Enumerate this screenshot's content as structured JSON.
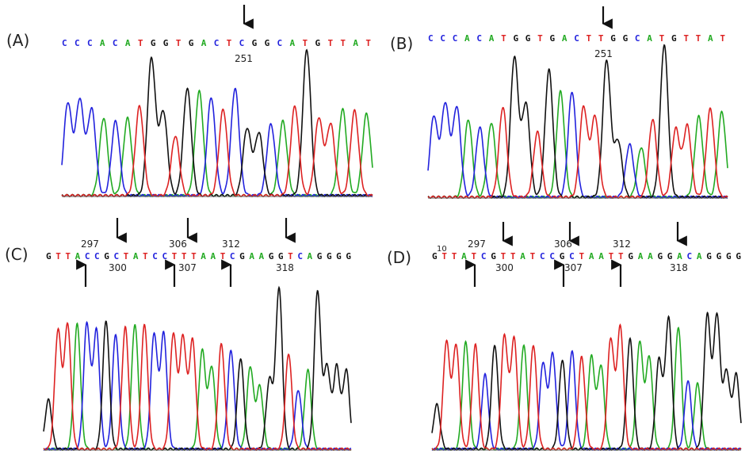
{
  "colors": {
    "A": "#22aa22",
    "C": "#2222dd",
    "G": "#111111",
    "T": "#dd2222"
  },
  "panels": [
    {
      "label": "(A)",
      "sequence": "CCCACATGGTGACTCGGCATGTTAT",
      "positions": [
        "251"
      ],
      "down_arrows": 1,
      "up_arrows": 0,
      "extra_labels": []
    },
    {
      "label": "(B)",
      "sequence": "CCCACATGGTGACTTGGCATGTTAT",
      "positions": [
        "251"
      ],
      "down_arrows": 1,
      "up_arrows": 0,
      "extra_labels": []
    },
    {
      "label": "(C)",
      "sequence": "GTTACCGCTATCCTTTAATCGAAGGTCAGGGG",
      "positions": [
        "297",
        "306",
        "312",
        "300",
        "307",
        "318"
      ],
      "down_arrows": 3,
      "up_arrows": 3,
      "extra_labels": []
    },
    {
      "label": "(D)",
      "sequence": "GTTATCGTTATCCGCTAATTGAAGGACAGGGG",
      "positions": [
        "297",
        "306",
        "312",
        "300",
        "307",
        "318"
      ],
      "down_arrows": 3,
      "up_arrows": 3,
      "extra_labels": [
        "10"
      ]
    }
  ]
}
